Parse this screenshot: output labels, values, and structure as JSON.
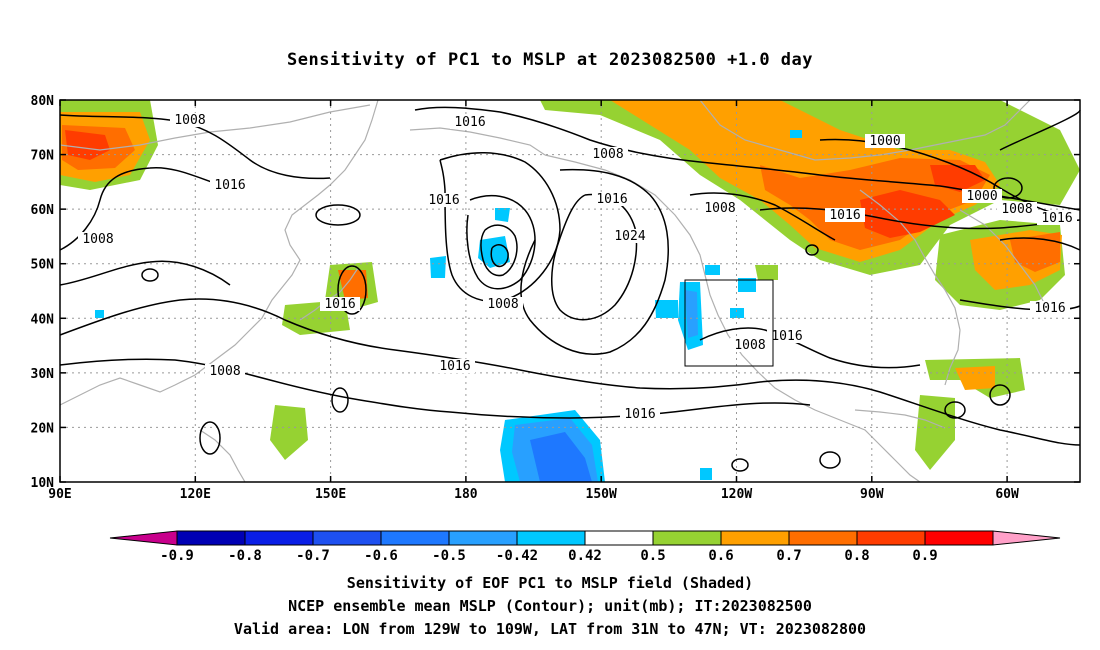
{
  "title": "Sensitivity of PC1 to MSLP at 2023082500 +1.0 day",
  "lat_labels": [
    "80N",
    "70N",
    "60N",
    "50N",
    "40N",
    "30N",
    "20N",
    "10N"
  ],
  "lon_labels": [
    "90E",
    "120E",
    "150E",
    "180",
    "150W",
    "120W",
    "90W",
    "60W"
  ],
  "contour_labels": [
    {
      "text": "1008"
    },
    {
      "text": "1016"
    },
    {
      "text": "1008"
    },
    {
      "text": "1000"
    },
    {
      "text": "1016"
    },
    {
      "text": "1016"
    },
    {
      "text": "1008"
    },
    {
      "text": "1016"
    },
    {
      "text": "1024"
    },
    {
      "text": "1008"
    },
    {
      "text": "1016"
    },
    {
      "text": "1000"
    },
    {
      "text": "1008"
    },
    {
      "text": "1016"
    },
    {
      "text": "1008"
    },
    {
      "text": "1016"
    },
    {
      "text": "1016"
    },
    {
      "text": "1008"
    },
    {
      "text": "1016"
    },
    {
      "text": "1016"
    },
    {
      "text": "1016"
    },
    {
      "text": "1008"
    }
  ],
  "colorbar": {
    "labels": [
      "-0.9",
      "-0.8",
      "-0.7",
      "-0.6",
      "-0.5",
      "-0.42",
      "0.42",
      "0.5",
      "0.6",
      "0.7",
      "0.8",
      "0.9"
    ],
    "colors": [
      "#c8008c",
      "#0000b4",
      "#0a1ee6",
      "#1e50f0",
      "#1e78ff",
      "#28a0ff",
      "#00c8ff",
      "#ffffff",
      "#96d232",
      "#ffa000",
      "#ff6e00",
      "#ff3c00",
      "#ff0000",
      "#ffa0c8"
    ]
  },
  "captions": [
    "Sensitivity of EOF PC1 to MSLP field (Shaded)",
    "NCEP ensemble mean MSLP (Contour); unit(mb); IT:2023082500",
    "Valid area: LON from 129W to 109W, LAT from 31N to 47N; VT: 2023082800"
  ]
}
